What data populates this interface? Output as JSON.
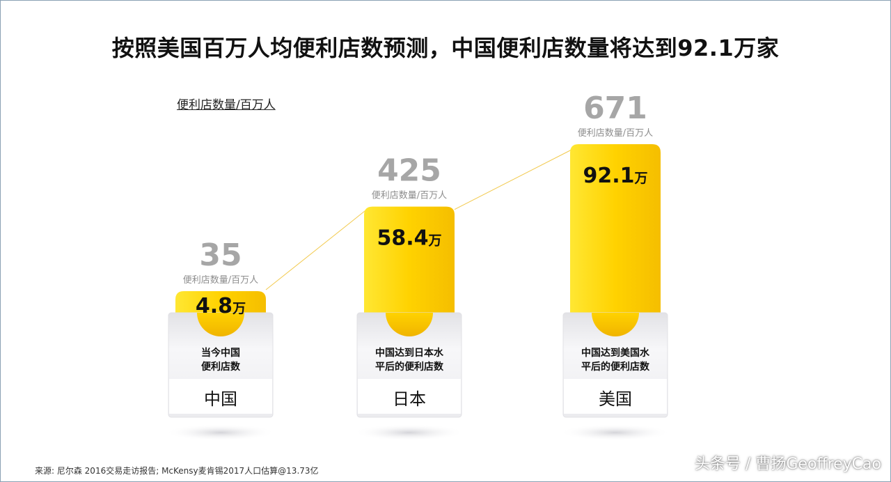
{
  "title": "按照美国百万人均便利店数预测，中国便利店数量将达到92.1万家",
  "unit_label": "便利店数量/百万人",
  "source": "来源: 尼尔森 2016交易走访报告; McKensy麦肯锡2017人口估算@13.73亿",
  "watermark": "头条号 / 曹扬GeoffreyCao",
  "colors": {
    "accent": "#FFD200",
    "density_number": "#a6a6a6",
    "connector": "#F2C94C"
  },
  "chart_data": {
    "type": "bar",
    "title": "按照美国百万人均便利店数预测，中国便利店数量将达到92.1万家",
    "categories": [
      "中国",
      "日本",
      "美国"
    ],
    "density_label": "便利店数量/百万人",
    "density_per_million": [
      35,
      425,
      671
    ],
    "values": [
      4.8,
      58.4,
      92.1
    ],
    "value_labels": [
      "4.8万",
      "58.4万",
      "92.1万"
    ],
    "value_unit": "万",
    "descriptions": [
      "当今中国\n便利店数",
      "中国达到日本水\n平后的便利店数",
      "中国达到美国水\n平后的便利店数"
    ],
    "connector_line": true
  }
}
